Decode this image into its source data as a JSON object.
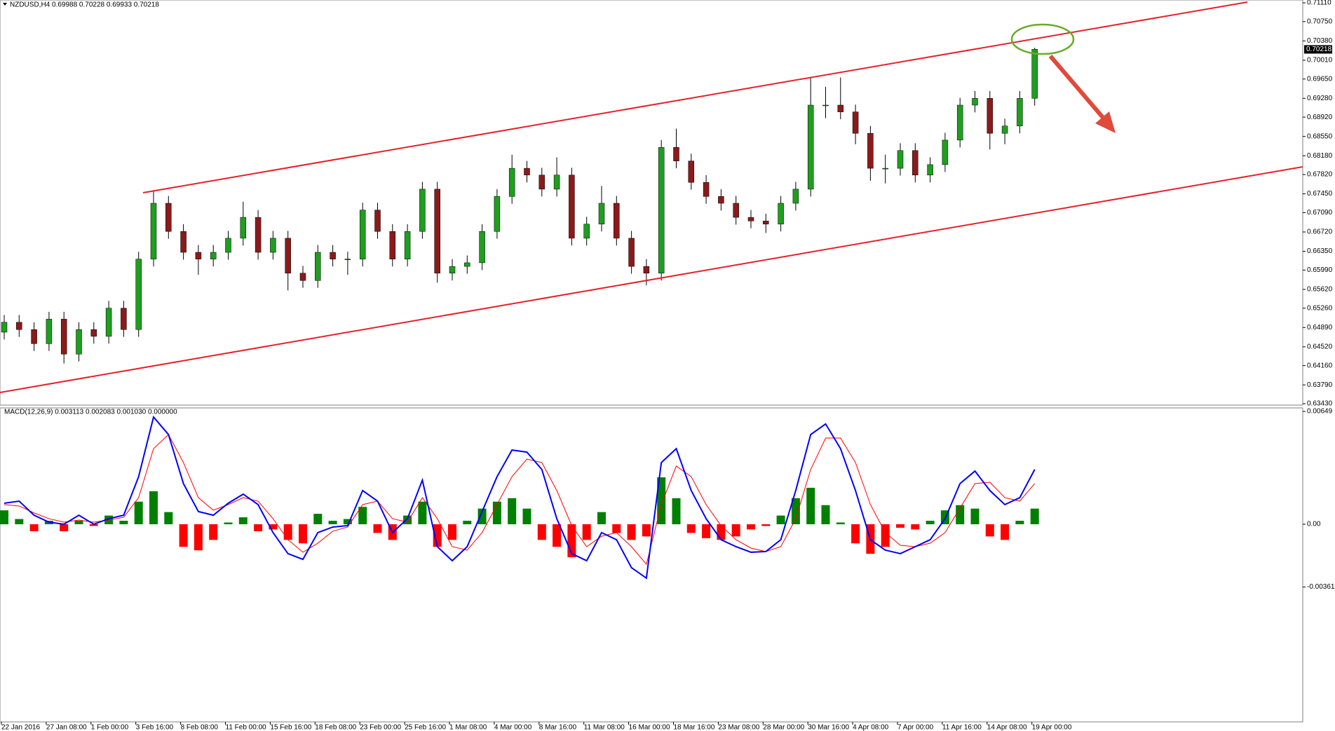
{
  "chart_data": [
    {
      "type": "candlestick",
      "title": "NZDUSD,H4  0.69988 0.70228 0.69933 0.70218",
      "categories": [
        "22 Jan 2016",
        null,
        null,
        "27 Jan 08:00",
        null,
        null,
        "1 Feb 00:00",
        null,
        null,
        "3 Feb 16:00",
        null,
        null,
        "8 Feb 08:00",
        null,
        null,
        "11 Feb 00:00",
        null,
        null,
        "15 Feb 16:00",
        null,
        null,
        "18 Feb 08:00",
        null,
        null,
        "23 Feb 00:00",
        null,
        null,
        "25 Feb 16:00",
        null,
        null,
        "1 Mar 08:00",
        null,
        null,
        "4 Mar 00:00",
        null,
        null,
        "8 Mar 16:00",
        null,
        null,
        "11 Mar 08:00",
        null,
        null,
        "16 Mar 00:00",
        null,
        null,
        "18 Mar 16:00",
        null,
        null,
        "23 Mar 08:00",
        null,
        null,
        "28 Mar 00:00",
        null,
        null,
        "30 Mar 16:00",
        null,
        null,
        "4 Apr 08:00",
        null,
        null,
        "7 Apr 00:00",
        null,
        null,
        "11 Apr 16:00",
        null,
        null,
        "14 Apr 08:00",
        null,
        null,
        "19 Apr 00:00"
      ],
      "open": [
        0.648,
        0.6499,
        0.6485,
        0.6458,
        0.6505,
        0.6438,
        0.6485,
        0.6472,
        0.6526,
        0.6485,
        0.662,
        0.6727,
        0.6673,
        0.6633,
        0.662,
        0.6633,
        0.666,
        0.67,
        0.6633,
        0.666,
        0.6593,
        0.6579,
        0.6633,
        0.662,
        0.662,
        0.6714,
        0.6673,
        0.662,
        0.6673,
        0.6754,
        0.6593,
        0.6606,
        0.6613,
        0.6673,
        0.674,
        0.6794,
        0.6781,
        0.6754,
        0.6781,
        0.666,
        0.6687,
        0.6727,
        0.666,
        0.6606,
        0.6593,
        0.6834,
        0.6808,
        0.6767,
        0.674,
        0.6727,
        0.67,
        0.6693,
        0.6687,
        0.6727,
        0.6754,
        0.6915,
        0.6915,
        0.6902,
        0.6861,
        0.6794,
        0.6794,
        0.6828,
        0.6781,
        0.6801,
        0.6848,
        0.6915,
        0.6928,
        0.6861,
        0.6875,
        0.6928
      ],
      "high": [
        0.6513,
        0.6513,
        0.6499,
        0.6519,
        0.6519,
        0.6499,
        0.6499,
        0.654,
        0.654,
        0.6634,
        0.675,
        0.6741,
        0.6687,
        0.6647,
        0.6647,
        0.6674,
        0.673,
        0.6714,
        0.6674,
        0.6674,
        0.6607,
        0.6647,
        0.6647,
        0.6634,
        0.6728,
        0.6728,
        0.6687,
        0.6687,
        0.6768,
        0.6768,
        0.662,
        0.6627,
        0.6687,
        0.6754,
        0.682,
        0.6808,
        0.6795,
        0.6815,
        0.6795,
        0.6701,
        0.676,
        0.6741,
        0.6674,
        0.662,
        0.6848,
        0.687,
        0.6822,
        0.6781,
        0.6754,
        0.6741,
        0.6714,
        0.6707,
        0.6741,
        0.6768,
        0.6968,
        0.695,
        0.6968,
        0.6916,
        0.6875,
        0.682,
        0.6842,
        0.6842,
        0.6815,
        0.6862,
        0.6929,
        0.6942,
        0.6942,
        0.6889,
        0.6942,
        0.7025
      ],
      "low": [
        0.6466,
        0.6471,
        0.6444,
        0.6444,
        0.642,
        0.6424,
        0.6458,
        0.6458,
        0.6471,
        0.6471,
        0.6606,
        0.6659,
        0.6619,
        0.659,
        0.6606,
        0.6619,
        0.6646,
        0.6619,
        0.6619,
        0.656,
        0.6565,
        0.6565,
        0.6606,
        0.659,
        0.6606,
        0.6659,
        0.6606,
        0.6606,
        0.6659,
        0.6575,
        0.6579,
        0.6592,
        0.6599,
        0.6659,
        0.6726,
        0.6767,
        0.674,
        0.674,
        0.6646,
        0.6646,
        0.6673,
        0.6646,
        0.6592,
        0.657,
        0.6579,
        0.6794,
        0.6753,
        0.6726,
        0.6713,
        0.6686,
        0.6679,
        0.667,
        0.6673,
        0.6713,
        0.674,
        0.689,
        0.6888,
        0.684,
        0.677,
        0.6765,
        0.678,
        0.6767,
        0.6767,
        0.6787,
        0.6834,
        0.6901,
        0.683,
        0.684,
        0.6861,
        0.6914
      ],
      "close": [
        0.6499,
        0.6485,
        0.6458,
        0.6505,
        0.6438,
        0.6485,
        0.6472,
        0.6526,
        0.6485,
        0.662,
        0.6727,
        0.6673,
        0.6633,
        0.662,
        0.6633,
        0.666,
        0.67,
        0.6633,
        0.666,
        0.6593,
        0.6579,
        0.6633,
        0.662,
        0.662,
        0.6714,
        0.6673,
        0.662,
        0.6673,
        0.6754,
        0.6593,
        0.6606,
        0.6613,
        0.6673,
        0.674,
        0.6794,
        0.6781,
        0.6754,
        0.6781,
        0.666,
        0.6687,
        0.6727,
        0.666,
        0.6606,
        0.6593,
        0.6834,
        0.6808,
        0.6767,
        0.674,
        0.6727,
        0.67,
        0.6693,
        0.6687,
        0.6727,
        0.6754,
        0.6915,
        0.6915,
        0.6902,
        0.6861,
        0.6794,
        0.6794,
        0.6828,
        0.6781,
        0.6801,
        0.6848,
        0.6915,
        0.6928,
        0.6861,
        0.6875,
        0.6928,
        0.7022
      ],
      "up_color": "#1f9e1f",
      "down_color": "#8b1a1a",
      "wick_color": "#000000",
      "ylim": [
        0.63403,
        0.71164
      ],
      "yticks": [
        {
          "value": 0.7111,
          "label": "0.71110"
        },
        {
          "value": 0.7075,
          "label": "0.70750"
        },
        {
          "value": 0.7038,
          "label": "0.70380"
        },
        {
          "value": 0.7001,
          "label": "0.70010"
        },
        {
          "value": 0.6965,
          "label": "0.69650"
        },
        {
          "value": 0.6928,
          "label": "0.69280"
        },
        {
          "value": 0.6892,
          "label": "0.68920"
        },
        {
          "value": 0.6855,
          "label": "0.68550"
        },
        {
          "value": 0.6818,
          "label": "0.68180"
        },
        {
          "value": 0.6782,
          "label": "0.67820"
        },
        {
          "value": 0.6745,
          "label": "0.67450"
        },
        {
          "value": 0.6709,
          "label": "0.67090"
        },
        {
          "value": 0.6672,
          "label": "0.66720"
        },
        {
          "value": 0.6635,
          "label": "0.66350"
        },
        {
          "value": 0.6599,
          "label": "0.65990"
        },
        {
          "value": 0.6562,
          "label": "0.65620"
        },
        {
          "value": 0.6526,
          "label": "0.65260"
        },
        {
          "value": 0.6489,
          "label": "0.64890"
        },
        {
          "value": 0.6452,
          "label": "0.64520"
        },
        {
          "value": 0.6416,
          "label": "0.64160"
        },
        {
          "value": 0.6379,
          "label": "0.63790"
        },
        {
          "value": 0.6343,
          "label": "0.63430"
        }
      ],
      "current_price": 0.70218
    },
    {
      "type": "macd",
      "title": "MACD(12,26,9) 0.003113 0.002083 0.001030 0.000000",
      "histogram": {
        "up_color": "#008000",
        "down_color": "#ff0000",
        "values": [
          0.0008,
          0.0003,
          -0.0004,
          0.0002,
          -0.0004,
          0.0002,
          -0.0001,
          0.0005,
          0.0002,
          0.0013,
          0.0019,
          0.0007,
          -0.0013,
          -0.0015,
          -0.0009,
          0.0001,
          0.0004,
          -0.0004,
          -0.0003,
          -0.0009,
          -0.0011,
          0.0006,
          0.0002,
          0.0003,
          0.001,
          -0.0005,
          -0.0009,
          0.0005,
          0.0013,
          -0.0013,
          -0.0009,
          0.0002,
          0.0009,
          0.0013,
          0.0015,
          0.0009,
          -0.0009,
          -0.0013,
          -0.0019,
          -0.0009,
          0.0007,
          -0.0005,
          -0.0009,
          -0.0007,
          0.0027,
          0.0015,
          -0.0005,
          -0.0008,
          -0.0009,
          -0.0007,
          -0.0003,
          -0.0001,
          0.0005,
          0.0015,
          0.0021,
          0.0011,
          0.0001,
          -0.0011,
          -0.0017,
          -0.0013,
          -0.0002,
          -0.0003,
          0.0002,
          0.0008,
          0.0011,
          0.0009,
          -0.0007,
          -0.0009,
          0.0002,
          0.0009
        ]
      },
      "macd_line": {
        "color": "#0000ff",
        "values": [
          0.00121,
          0.00133,
          0.00052,
          0.00012,
          0,
          0.00052,
          0,
          0.00032,
          0.00052,
          0.00274,
          0.00617,
          0.00516,
          0.00234,
          0.00073,
          0.00052,
          0.00121,
          0.00173,
          0.00113,
          -0.00048,
          -0.00169,
          -0.00202,
          -0.00048,
          -0.00016,
          -8e-05,
          0.00194,
          0.00133,
          -0.00048,
          0.00032,
          0.00254,
          -0.00129,
          -0.0021,
          -0.00129,
          0.00073,
          0.00274,
          0.00427,
          0.00415,
          0.00315,
          0.00032,
          -0.00169,
          -0.0021,
          -0.00048,
          -0.00089,
          -0.0025,
          -0.0031,
          0.00355,
          0.00435,
          0.00194,
          0.00032,
          -0.00089,
          -0.00129,
          -0.00161,
          -0.00157,
          -0.00089,
          0.00194,
          0.00516,
          0.00577,
          0.00435,
          0.00194,
          -0.00089,
          -0.00149,
          -0.00169,
          -0.00129,
          -0.00089,
          0.00032,
          0.00234,
          0.00306,
          0.00194,
          0.00113,
          0.00153,
          0.00315
        ]
      },
      "signal_line": {
        "color": "#ff0000",
        "values": [
          0.00113,
          0.00105,
          0.00065,
          0.00032,
          0.00012,
          0.00024,
          0.00012,
          0.00024,
          0.0004,
          0.00153,
          0.00435,
          0.00516,
          0.00355,
          0.00153,
          0.00081,
          0.00113,
          0.00153,
          0.00133,
          0.00032,
          -0.00089,
          -0.00161,
          -0.00109,
          -0.0004,
          -0.00016,
          0.00113,
          0.00133,
          0.00032,
          0.00012,
          0.00153,
          0.00032,
          -0.00129,
          -0.00149,
          -0.00048,
          0.00113,
          0.00274,
          0.00375,
          0.00355,
          0.00194,
          -8e-05,
          -0.00129,
          -0.00069,
          -0.00048,
          -0.00129,
          -0.0023,
          0.00113,
          0.00335,
          0.00274,
          0.00113,
          -8e-05,
          -0.00089,
          -0.00137,
          -0.00157,
          -0.00129,
          0.00032,
          0.00315,
          0.00496,
          0.00496,
          0.00355,
          0.00113,
          -0.00048,
          -0.00121,
          -0.00129,
          -0.00109,
          -0.00048,
          0.00093,
          0.00234,
          0.00242,
          0.00153,
          0.00133,
          0.00234
        ]
      },
      "ylim": [
        -0.011371,
        0.006694
      ],
      "yticks": [
        0.00649,
        {
          "value": 0,
          "label": "0.00"
        },
        -0.003611
      ]
    }
  ]
}
